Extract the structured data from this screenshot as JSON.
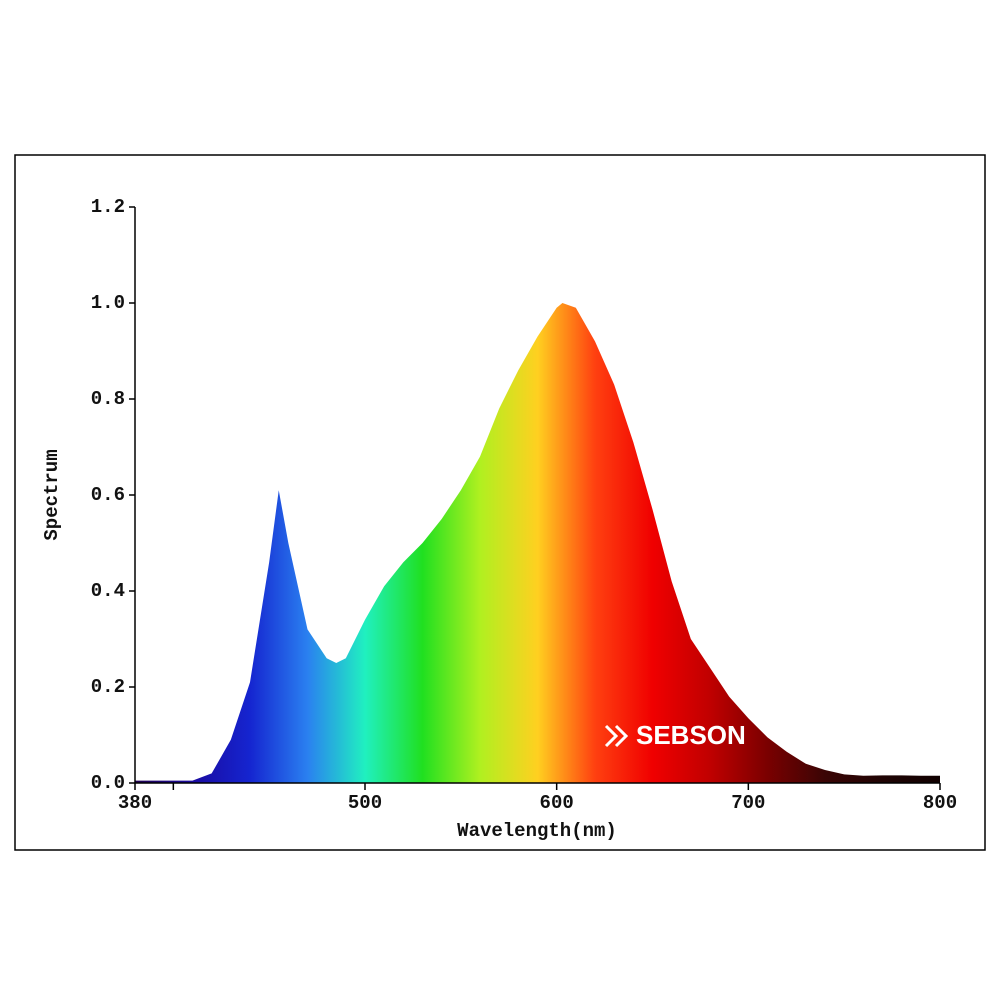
{
  "chart_data": {
    "type": "area",
    "x_label": "Wavelength(nm)",
    "y_label": "Spectrum",
    "watermark": "SEBSON",
    "x": [
      380,
      390,
      400,
      410,
      420,
      430,
      440,
      450,
      455,
      460,
      470,
      480,
      485,
      490,
      500,
      510,
      520,
      530,
      540,
      550,
      560,
      570,
      580,
      590,
      600,
      603,
      610,
      620,
      630,
      640,
      650,
      660,
      670,
      680,
      690,
      700,
      710,
      720,
      730,
      740,
      750,
      760,
      770,
      780,
      790,
      800
    ],
    "values": [
      0.005,
      0.005,
      0.005,
      0.005,
      0.02,
      0.09,
      0.21,
      0.46,
      0.61,
      0.5,
      0.32,
      0.26,
      0.25,
      0.26,
      0.34,
      0.41,
      0.46,
      0.5,
      0.55,
      0.61,
      0.68,
      0.78,
      0.86,
      0.93,
      0.99,
      1.0,
      0.99,
      0.92,
      0.83,
      0.71,
      0.57,
      0.42,
      0.3,
      0.24,
      0.18,
      0.135,
      0.095,
      0.065,
      0.04,
      0.027,
      0.018,
      0.015,
      0.016,
      0.016,
      0.015,
      0.015
    ],
    "colors": [
      "#200050",
      "#1a0aa0",
      "#1525d0",
      "#2a80f0",
      "#20f0c0",
      "#20e020",
      "#b0f020",
      "#ffd020",
      "#ff4010",
      "#f00000",
      "#c00000",
      "#7a0000",
      "#3a0505",
      "#200404",
      "#100000"
    ],
    "xlim": [
      380,
      800
    ],
    "xticks": [
      380,
      500,
      600,
      700,
      800
    ],
    "xminorticks": [
      400
    ],
    "ylim": [
      0,
      1.2
    ],
    "yticks": [
      {
        "value": 0,
        "label": "0.0"
      },
      0.2,
      0.4,
      0.6,
      0.8,
      {
        "value": 1,
        "label": "1.0"
      },
      1.2
    ]
  }
}
